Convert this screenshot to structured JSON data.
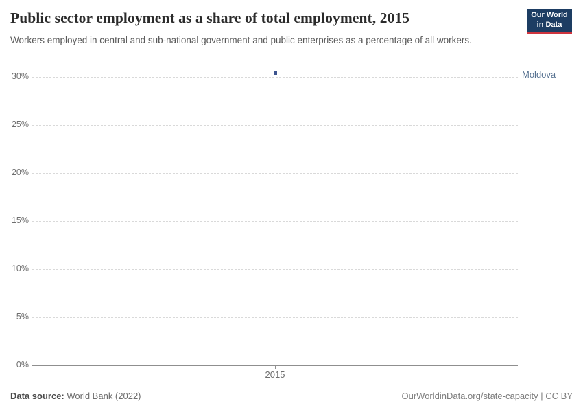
{
  "header": {
    "title": "Public sector employment as a share of total employment, 2015",
    "subtitle": "Workers employed in central and sub-national government and public enterprises as a percentage of all workers.",
    "logo": {
      "line1": "Our World",
      "line2": "in Data",
      "bg_color": "#1d3d63",
      "accent_color": "#cf343e"
    }
  },
  "chart_data": {
    "type": "scatter",
    "x": [
      2015
    ],
    "series": [
      {
        "name": "Moldova",
        "values": [
          30.4
        ],
        "color": "#3d548f",
        "label_color": "#577291"
      }
    ],
    "title": "Public sector employment as a share of total employment, 2015",
    "xlabel": "",
    "ylabel": "",
    "yticks": [
      0,
      5,
      10,
      15,
      20,
      25,
      30
    ],
    "ytick_suffix": "%",
    "xtick_labels": [
      "2015"
    ],
    "ylim": [
      0,
      32
    ],
    "grid": "horizontal-dashed",
    "legend_position": "right-entity-label"
  },
  "footer": {
    "source_label": "Data source:",
    "source_value": " World Bank (2022)",
    "credit": "OurWorldinData.org/state-capacity | CC BY"
  }
}
